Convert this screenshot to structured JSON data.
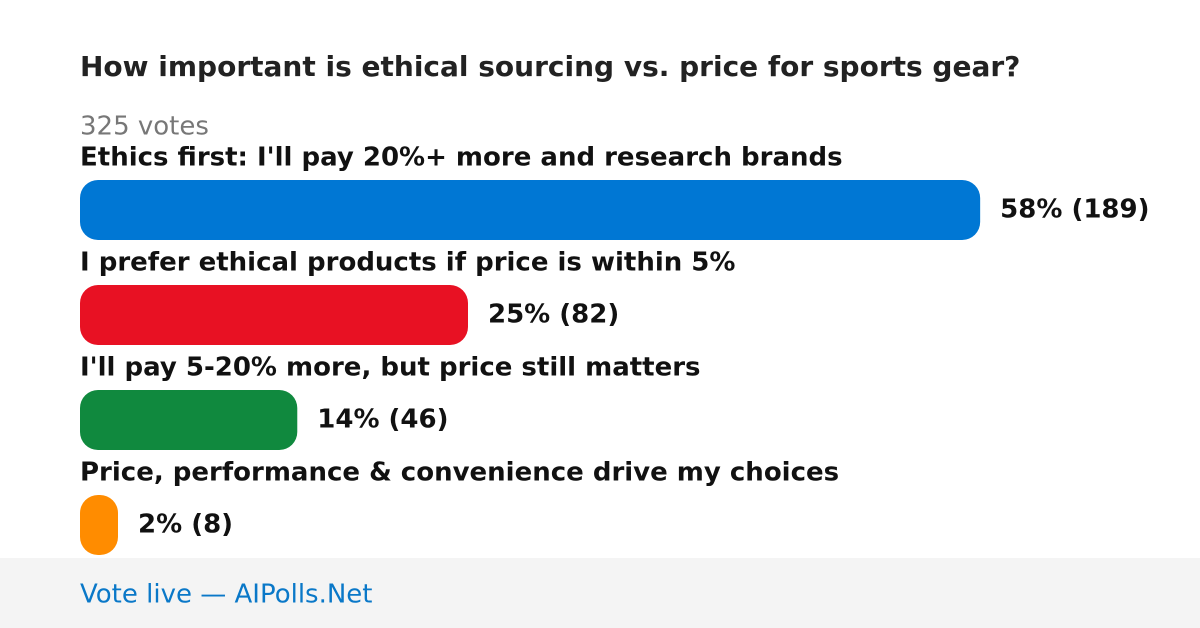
{
  "chart_data": {
    "type": "bar",
    "title": "How important is ethical sourcing vs. price for sports gear?",
    "subtitle": "325 votes",
    "categories": [
      "Ethics first: I'll pay 20%+ more and research brands",
      "I prefer ethical products if price is within 5%",
      "I'll pay 5-20% more, but price still matters",
      "Price, performance & convenience drive my choices"
    ],
    "values": [
      58,
      25,
      14,
      2
    ],
    "value_labels": [
      "58% (189)",
      "25% (82)",
      "14% (46)",
      "2% (8)"
    ],
    "colors": [
      "#0077d4",
      "#e81123",
      "#10893e",
      "#ff8c00"
    ]
  },
  "footer": "Vote live — AIPolls.Net"
}
